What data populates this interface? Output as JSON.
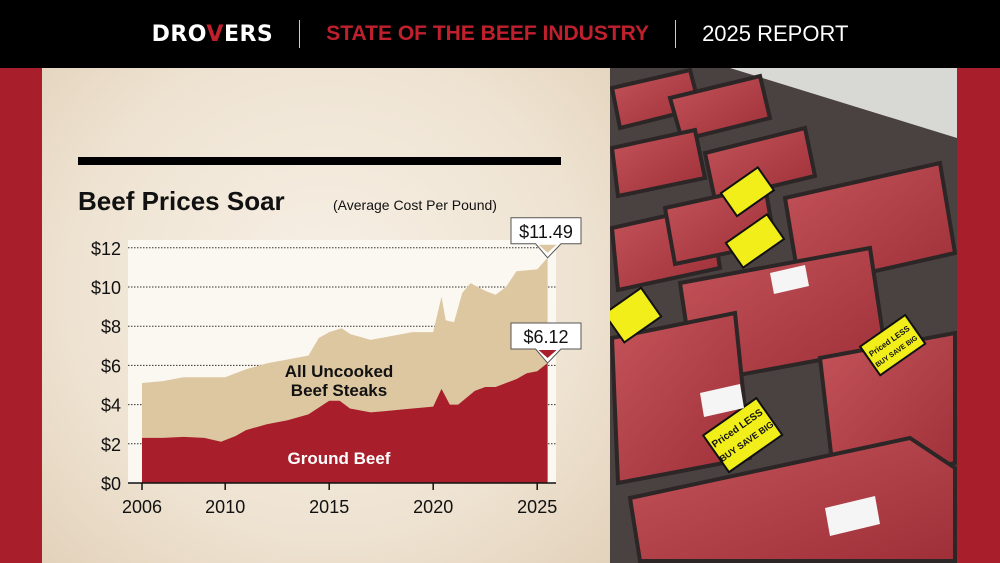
{
  "header": {
    "logo": "DROVERS",
    "logo_parts": [
      "DRO",
      "V",
      "ERS"
    ],
    "title": "STATE OF THE BEEF INDUSTRY",
    "report": "2025 REPORT"
  },
  "colors": {
    "red": "#a81e2b",
    "tan": "#ddc7a0",
    "black": "#000000"
  },
  "photo": {
    "description_icon": "meat-display-photo",
    "labels": [
      "Priced LESS",
      "BUY SAVE BIG"
    ]
  },
  "chart_data": {
    "type": "area",
    "title": "Beef Prices Soar",
    "subtitle": "(Average Cost Per Pound)",
    "xlabel": "",
    "ylabel": "",
    "xlim": [
      2006,
      2025.8
    ],
    "ylim": [
      0,
      12
    ],
    "xticks": [
      2006,
      2010,
      2015,
      2020,
      2025
    ],
    "yticks": [
      0,
      2,
      4,
      6,
      8,
      10,
      12
    ],
    "ytick_labels": [
      "$0",
      "$2",
      "$4",
      "$6",
      "$8",
      "$10",
      "$12"
    ],
    "grid": "horizontal dotted",
    "series": [
      {
        "name": "All Uncooked Beef Steaks",
        "label_lines": [
          "All Uncooked",
          "Beef Steaks"
        ],
        "color": "#ddc7a0",
        "x": [
          2006,
          2007,
          2008,
          2009,
          2010,
          2011,
          2012,
          2013,
          2014,
          2014.5,
          2015,
          2015.6,
          2016,
          2017,
          2018,
          2019,
          2020,
          2020.4,
          2020.6,
          2021,
          2021.4,
          2021.8,
          2022.5,
          2023,
          2023.5,
          2024,
          2025,
          2025.5
        ],
        "y": [
          5.1,
          5.2,
          5.4,
          5.4,
          5.4,
          5.8,
          6.1,
          6.3,
          6.5,
          7.4,
          7.7,
          7.9,
          7.6,
          7.3,
          7.5,
          7.7,
          7.7,
          9.5,
          8.3,
          8.2,
          9.7,
          10.2,
          9.8,
          9.6,
          10.0,
          10.8,
          10.9,
          11.49
        ],
        "end_label": "$11.49"
      },
      {
        "name": "Ground Beef",
        "label_lines": [
          "Ground Beef"
        ],
        "color": "#a81e2b",
        "x": [
          2006,
          2007,
          2008,
          2009,
          2009.8,
          2010.5,
          2011,
          2012,
          2013,
          2014,
          2015,
          2015.5,
          2016,
          2017,
          2018,
          2019,
          2020,
          2020.4,
          2020.8,
          2021.2,
          2022,
          2022.5,
          2023,
          2024,
          2024.5,
          2025,
          2025.5
        ],
        "y": [
          2.3,
          2.3,
          2.35,
          2.3,
          2.1,
          2.4,
          2.7,
          3.0,
          3.2,
          3.5,
          4.2,
          4.2,
          3.8,
          3.6,
          3.7,
          3.8,
          3.9,
          4.8,
          4.0,
          4.0,
          4.7,
          4.9,
          4.9,
          5.3,
          5.6,
          5.7,
          6.12
        ],
        "end_label": "$6.12"
      }
    ]
  }
}
